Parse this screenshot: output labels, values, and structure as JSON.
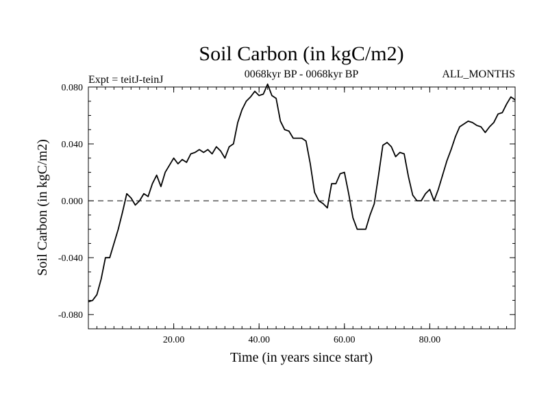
{
  "chart_data": {
    "type": "line",
    "title": "Soil Carbon (in kgC/m2)",
    "subtitle_left": "Expt = teitJ-teinJ",
    "subtitle_center": "0068kyr BP - 0068kyr BP",
    "subtitle_right": "ALL_MONTHS",
    "xlabel": "Time (in years since start)",
    "ylabel": "Soil Carbon (in kgC/m2)",
    "xlim": [
      0,
      100
    ],
    "ylim": [
      -0.09,
      0.08
    ],
    "x_ticks": [
      20,
      40,
      60,
      80
    ],
    "x_tick_labels": [
      "20.00",
      "40.00",
      "60.00",
      "80.00"
    ],
    "y_ticks": [
      -0.08,
      -0.04,
      0.0,
      0.04,
      0.08
    ],
    "y_tick_labels": [
      "-0.080",
      "-0.040",
      "0.000",
      "0.040",
      "0.080"
    ],
    "reference_line": {
      "y": 0.0,
      "style": "dashed"
    },
    "grid": false,
    "line_color": "#000000",
    "series": [
      {
        "x": [
          0,
          1,
          2,
          3,
          4,
          5,
          6,
          7,
          8,
          9,
          10,
          11,
          12,
          13,
          14,
          15,
          16,
          17,
          18,
          19,
          20,
          21,
          22,
          23,
          24,
          25,
          26,
          27,
          28,
          29,
          30,
          31,
          32,
          33,
          34,
          35,
          36,
          37,
          38,
          39,
          40,
          41,
          42,
          43,
          44,
          45,
          46,
          47,
          48,
          49,
          50,
          51,
          52,
          53,
          54,
          55,
          56,
          57,
          58,
          59,
          60,
          61,
          62,
          63,
          64,
          65,
          66,
          67,
          68,
          69,
          70,
          71,
          72,
          73,
          74,
          75,
          76,
          77,
          78,
          79,
          80,
          81,
          82,
          83,
          84,
          85,
          86,
          87,
          88,
          89,
          90,
          91,
          92,
          93,
          94,
          95,
          96,
          97,
          98,
          99,
          100
        ],
        "values": [
          -0.071,
          -0.07,
          -0.066,
          -0.055,
          -0.04,
          -0.04,
          -0.03,
          -0.02,
          -0.008,
          0.005,
          0.002,
          -0.003,
          0.0,
          0.005,
          0.003,
          0.012,
          0.018,
          0.01,
          0.02,
          0.025,
          0.03,
          0.026,
          0.029,
          0.027,
          0.033,
          0.034,
          0.036,
          0.034,
          0.036,
          0.033,
          0.038,
          0.035,
          0.03,
          0.038,
          0.04,
          0.055,
          0.064,
          0.07,
          0.073,
          0.077,
          0.074,
          0.075,
          0.082,
          0.074,
          0.072,
          0.056,
          0.05,
          0.049,
          0.044,
          0.044,
          0.044,
          0.042,
          0.026,
          0.006,
          0.0,
          -0.002,
          -0.005,
          0.012,
          0.012,
          0.019,
          0.02,
          0.005,
          -0.012,
          -0.02,
          -0.02,
          -0.02,
          -0.01,
          -0.002,
          0.018,
          0.039,
          0.041,
          0.038,
          0.031,
          0.034,
          0.033,
          0.017,
          0.004,
          0.0,
          0.0,
          0.005,
          0.008,
          0.0,
          0.008,
          0.018,
          0.028,
          0.036,
          0.045,
          0.052,
          0.054,
          0.056,
          0.055,
          0.053,
          0.052,
          0.048,
          0.052,
          0.055,
          0.061,
          0.062,
          0.068,
          0.073,
          0.071
        ]
      }
    ]
  }
}
